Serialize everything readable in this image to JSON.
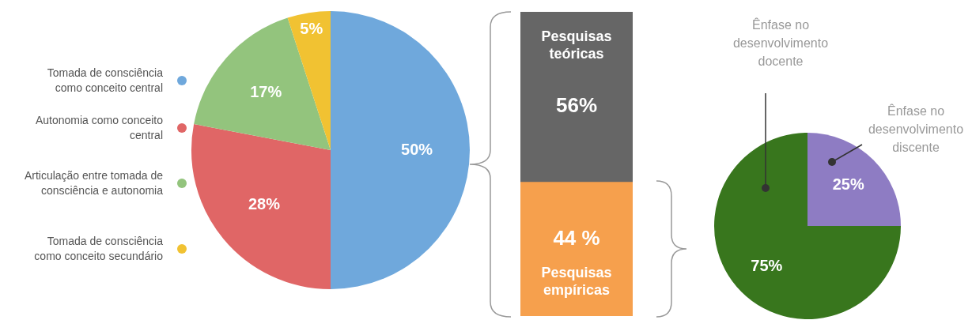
{
  "chart_data": [
    {
      "type": "pie",
      "categories": [
        "Tomada de consciência como conceito central",
        "Autonomia como conceito central",
        "Articulação entre tomada de consciência e autonomia",
        "Tomada de consciência como conceito secundário"
      ],
      "values": [
        50,
        28,
        17,
        5
      ],
      "colors": [
        "#6fa8dc",
        "#e06666",
        "#93c47d",
        "#f1c232"
      ],
      "value_labels": [
        "50%",
        "28%",
        "17%",
        "5%"
      ],
      "legend": "left"
    },
    {
      "type": "bar",
      "stacked": true,
      "categories": [
        null
      ],
      "series": [
        {
          "name": "Pesquisas empíricas",
          "color": "#f6a04d",
          "values": [
            44
          ],
          "value_labels": [
            "44 %"
          ]
        },
        {
          "name": "Pesquisas teóricas",
          "color": "#666666",
          "values": [
            56
          ],
          "value_labels": [
            "56%"
          ]
        }
      ]
    },
    {
      "type": "pie",
      "categories": [
        "Ênfase no desenvolvimento discente",
        "Ênfase no desenvolvimento docente"
      ],
      "values": [
        25,
        75
      ],
      "colors": [
        "#8e7cc3",
        "#38761d"
      ],
      "value_labels": [
        "25%",
        "75%"
      ]
    }
  ]
}
